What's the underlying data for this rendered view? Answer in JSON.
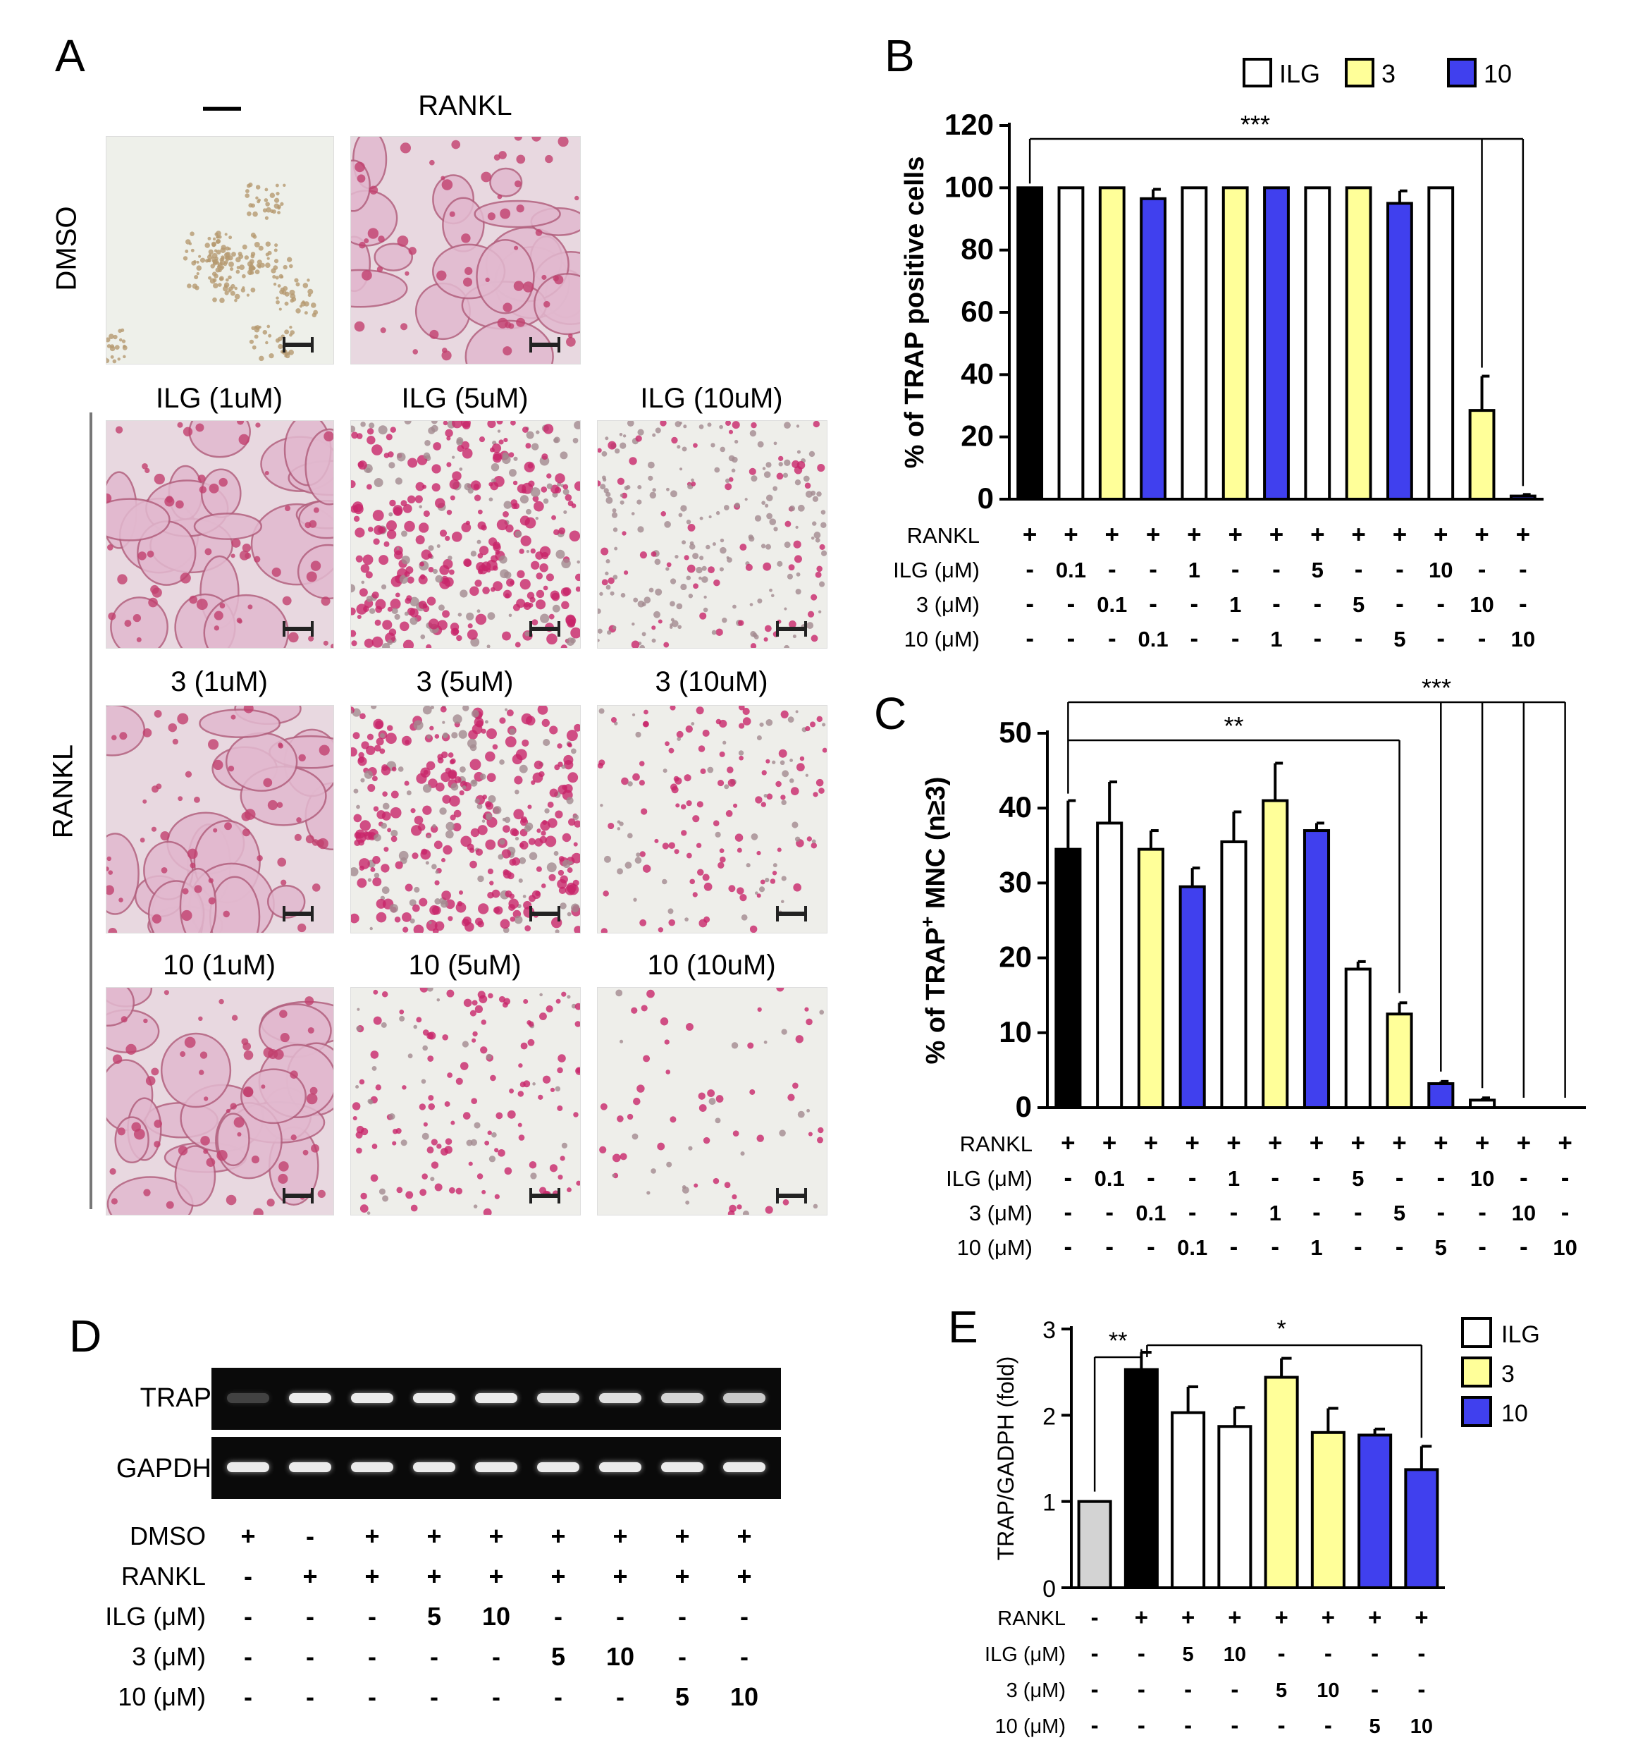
{
  "panel_letters": [
    "A",
    "B",
    "C",
    "D",
    "E"
  ],
  "panel_a": {
    "col_headers": [
      "—",
      "RANKL"
    ],
    "row_labels": [
      "DMSO",
      "RANKL"
    ],
    "cells": [
      {
        "label": "",
        "type": "sparse"
      },
      {
        "label": "",
        "type": "osteoclast"
      },
      {
        "label": "ILG (1uM)",
        "type": "osteoclast"
      },
      {
        "label": "ILG (5uM)",
        "type": "dots"
      },
      {
        "label": "ILG (10uM)",
        "type": "sparsedots"
      },
      {
        "label": "3 (1uM)",
        "type": "osteoclast"
      },
      {
        "label": "3 (5uM)",
        "type": "dots"
      },
      {
        "label": "3 (10uM)",
        "type": "fewdots"
      },
      {
        "label": "10 (1uM)",
        "type": "osteoclast"
      },
      {
        "label": "10 (5uM)",
        "type": "fewdots"
      },
      {
        "label": "10 (10uM)",
        "type": "veryfew"
      }
    ]
  },
  "panel_d": {
    "gel_labels": [
      "TRAP",
      "GAPDH"
    ],
    "row_labels": [
      "DMSO",
      "RANKL",
      "ILG (μM)",
      "3 (μM)",
      "10 (μM)"
    ],
    "rows": [
      [
        "+",
        "-",
        "+",
        "+",
        "+",
        "+",
        "+",
        "+",
        "+"
      ],
      [
        "-",
        "+",
        "+",
        "+",
        "+",
        "+",
        "+",
        "+",
        "+"
      ],
      [
        "-",
        "-",
        "-",
        "5",
        "10",
        "-",
        "-",
        "-",
        "-"
      ],
      [
        "-",
        "-",
        "-",
        "-",
        "-",
        "5",
        "10",
        "-",
        "-"
      ],
      [
        "-",
        "-",
        "-",
        "-",
        "-",
        "-",
        "-",
        "5",
        "10"
      ]
    ],
    "trap_band_intensity": [
      0.25,
      1,
      1,
      1,
      1,
      0.95,
      0.95,
      0.9,
      0.85
    ],
    "gapdh_band_intensity": [
      1,
      1,
      1,
      1,
      1,
      1,
      1,
      1,
      1
    ]
  },
  "colors": {
    "black": "#000000",
    "white": "#ffffff",
    "yellow": "#ffff99",
    "blue": "#4040ee",
    "gray": "#d3d3d3"
  },
  "chart_data": [
    {
      "panel": "B",
      "type": "bar",
      "ylabel": "% of TRAP positive cells",
      "ylim": [
        0,
        120
      ],
      "yticks": [
        0,
        20,
        40,
        60,
        80,
        100,
        120
      ],
      "legend": [
        {
          "label": "ILG",
          "color": "white"
        },
        {
          "label": "3",
          "color": "yellow"
        },
        {
          "label": "10",
          "color": "blue"
        }
      ],
      "values": [
        100,
        100,
        100,
        96.5,
        100,
        100,
        100,
        100,
        100,
        95,
        100,
        28.5,
        1
      ],
      "errors": [
        0,
        0,
        0,
        3,
        0,
        0,
        0,
        0,
        0,
        4,
        0,
        11,
        0.5
      ],
      "bar_colors": [
        "black",
        "white",
        "yellow",
        "blue",
        "white",
        "yellow",
        "blue",
        "white",
        "yellow",
        "blue",
        "white",
        "yellow",
        "blue"
      ],
      "row_labels": [
        "RANKL",
        "ILG (μM)",
        "3 (μM)",
        "10 (μM)"
      ],
      "rows": [
        [
          "+",
          "+",
          "+",
          "+",
          "+",
          "+",
          "+",
          "+",
          "+",
          "+",
          "+",
          "+",
          "+"
        ],
        [
          "-",
          "0.1",
          "-",
          "-",
          "1",
          "-",
          "-",
          "5",
          "-",
          "-",
          "10",
          "-",
          "-"
        ],
        [
          "-",
          "-",
          "0.1",
          "-",
          "-",
          "1",
          "-",
          "-",
          "5",
          "-",
          "-",
          "10",
          "-"
        ],
        [
          "-",
          "-",
          "-",
          "0.1",
          "-",
          "-",
          "1",
          "-",
          "-",
          "5",
          "-",
          "-",
          "10"
        ]
      ],
      "significance": [
        {
          "label": "***",
          "from": 0,
          "to": [
            11,
            12
          ]
        }
      ]
    },
    {
      "panel": "C",
      "type": "bar",
      "ylabel_prefix": "% of TRAP",
      "ylabel_sup": "+",
      "ylabel_suffix": " MNC (n≥3)",
      "ylim": [
        0,
        50
      ],
      "yticks": [
        0,
        10,
        20,
        30,
        40,
        50
      ],
      "values": [
        34.5,
        38,
        34.5,
        29.5,
        35.5,
        41,
        37,
        18.5,
        12.5,
        3.2,
        1,
        0,
        0
      ],
      "errors": [
        6.5,
        5.5,
        2.5,
        2.5,
        4,
        5,
        1,
        1,
        1.5,
        0.3,
        0.3,
        0,
        0
      ],
      "bar_colors": [
        "black",
        "white",
        "yellow",
        "blue",
        "white",
        "yellow",
        "blue",
        "white",
        "yellow",
        "blue",
        "white",
        "yellow",
        "blue"
      ],
      "row_labels": [
        "RANKL",
        "ILG (μM)",
        "3 (μM)",
        "10 (μM)"
      ],
      "rows": [
        [
          "+",
          "+",
          "+",
          "+",
          "+",
          "+",
          "+",
          "+",
          "+",
          "+",
          "+",
          "+",
          "+"
        ],
        [
          "-",
          "0.1",
          "-",
          "-",
          "1",
          "-",
          "-",
          "5",
          "-",
          "-",
          "10",
          "-",
          "-"
        ],
        [
          "-",
          "-",
          "0.1",
          "-",
          "-",
          "1",
          "-",
          "-",
          "5",
          "-",
          "-",
          "10",
          "-"
        ],
        [
          "-",
          "-",
          "-",
          "0.1",
          "-",
          "-",
          "1",
          "-",
          "-",
          "5",
          "-",
          "-",
          "10"
        ]
      ],
      "significance": [
        {
          "label": "**",
          "from": 0,
          "to": [
            8
          ]
        },
        {
          "label": "***",
          "from": 0,
          "to": [
            9,
            10,
            11,
            12
          ]
        }
      ]
    },
    {
      "panel": "E",
      "type": "bar",
      "ylabel": "TRAP/GADPH (fold)",
      "ylim": [
        0,
        3
      ],
      "yticks": [
        0,
        1,
        2,
        3
      ],
      "legend": [
        {
          "label": "ILG",
          "color": "white"
        },
        {
          "label": "3",
          "color": "yellow"
        },
        {
          "label": "10",
          "color": "blue"
        }
      ],
      "values": [
        1,
        2.53,
        2.03,
        1.87,
        2.44,
        1.8,
        1.77,
        1.37
      ],
      "errors": [
        0,
        0.2,
        0.3,
        0.22,
        0.22,
        0.28,
        0.07,
        0.27
      ],
      "bar_colors": [
        "gray",
        "black",
        "white",
        "white",
        "yellow",
        "yellow",
        "blue",
        "blue"
      ],
      "row_labels": [
        "RANKL",
        "ILG (μM)",
        "3 (μM)",
        "10 (μM)"
      ],
      "rows": [
        [
          "-",
          "+",
          "+",
          "+",
          "+",
          "+",
          "+",
          "+"
        ],
        [
          "-",
          "-",
          "5",
          "10",
          "-",
          "-",
          "-",
          "-"
        ],
        [
          "-",
          "-",
          "-",
          "-",
          "5",
          "10",
          "-",
          "-"
        ],
        [
          "-",
          "-",
          "-",
          "-",
          "-",
          "-",
          "5",
          "10"
        ]
      ],
      "significance": [
        {
          "label": "**",
          "from": 0,
          "to": [
            1
          ]
        },
        {
          "label": "*",
          "from": 1,
          "to": [
            7
          ]
        }
      ]
    }
  ]
}
